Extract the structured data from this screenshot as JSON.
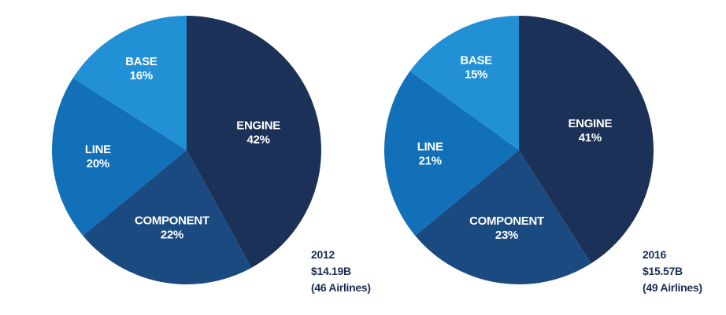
{
  "chart_data": [
    {
      "type": "pie",
      "caption": [
        "2012",
        "$14.19B",
        "(46 Airlines)"
      ],
      "slices": [
        {
          "label": "ENGINE",
          "value": 42,
          "value_label": "42%",
          "color": "#1b3157"
        },
        {
          "label": "COMPONENT",
          "value": 22,
          "value_label": "22%",
          "color": "#1b4a80"
        },
        {
          "label": "LINE",
          "value": 20,
          "value_label": "20%",
          "color": "#1270b9"
        },
        {
          "label": "BASE",
          "value": 16,
          "value_label": "16%",
          "color": "#2290d5"
        }
      ]
    },
    {
      "type": "pie",
      "caption": [
        "2016",
        "$15.57B",
        "(49 Airlines)"
      ],
      "slices": [
        {
          "label": "ENGINE",
          "value": 41,
          "value_label": "41%",
          "color": "#1b3157"
        },
        {
          "label": "COMPONENT",
          "value": 23,
          "value_label": "23%",
          "color": "#1b4a80"
        },
        {
          "label": "LINE",
          "value": 21,
          "value_label": "21%",
          "color": "#1270b9"
        },
        {
          "label": "BASE",
          "value": 15,
          "value_label": "15%",
          "color": "#2290d5"
        }
      ]
    }
  ]
}
